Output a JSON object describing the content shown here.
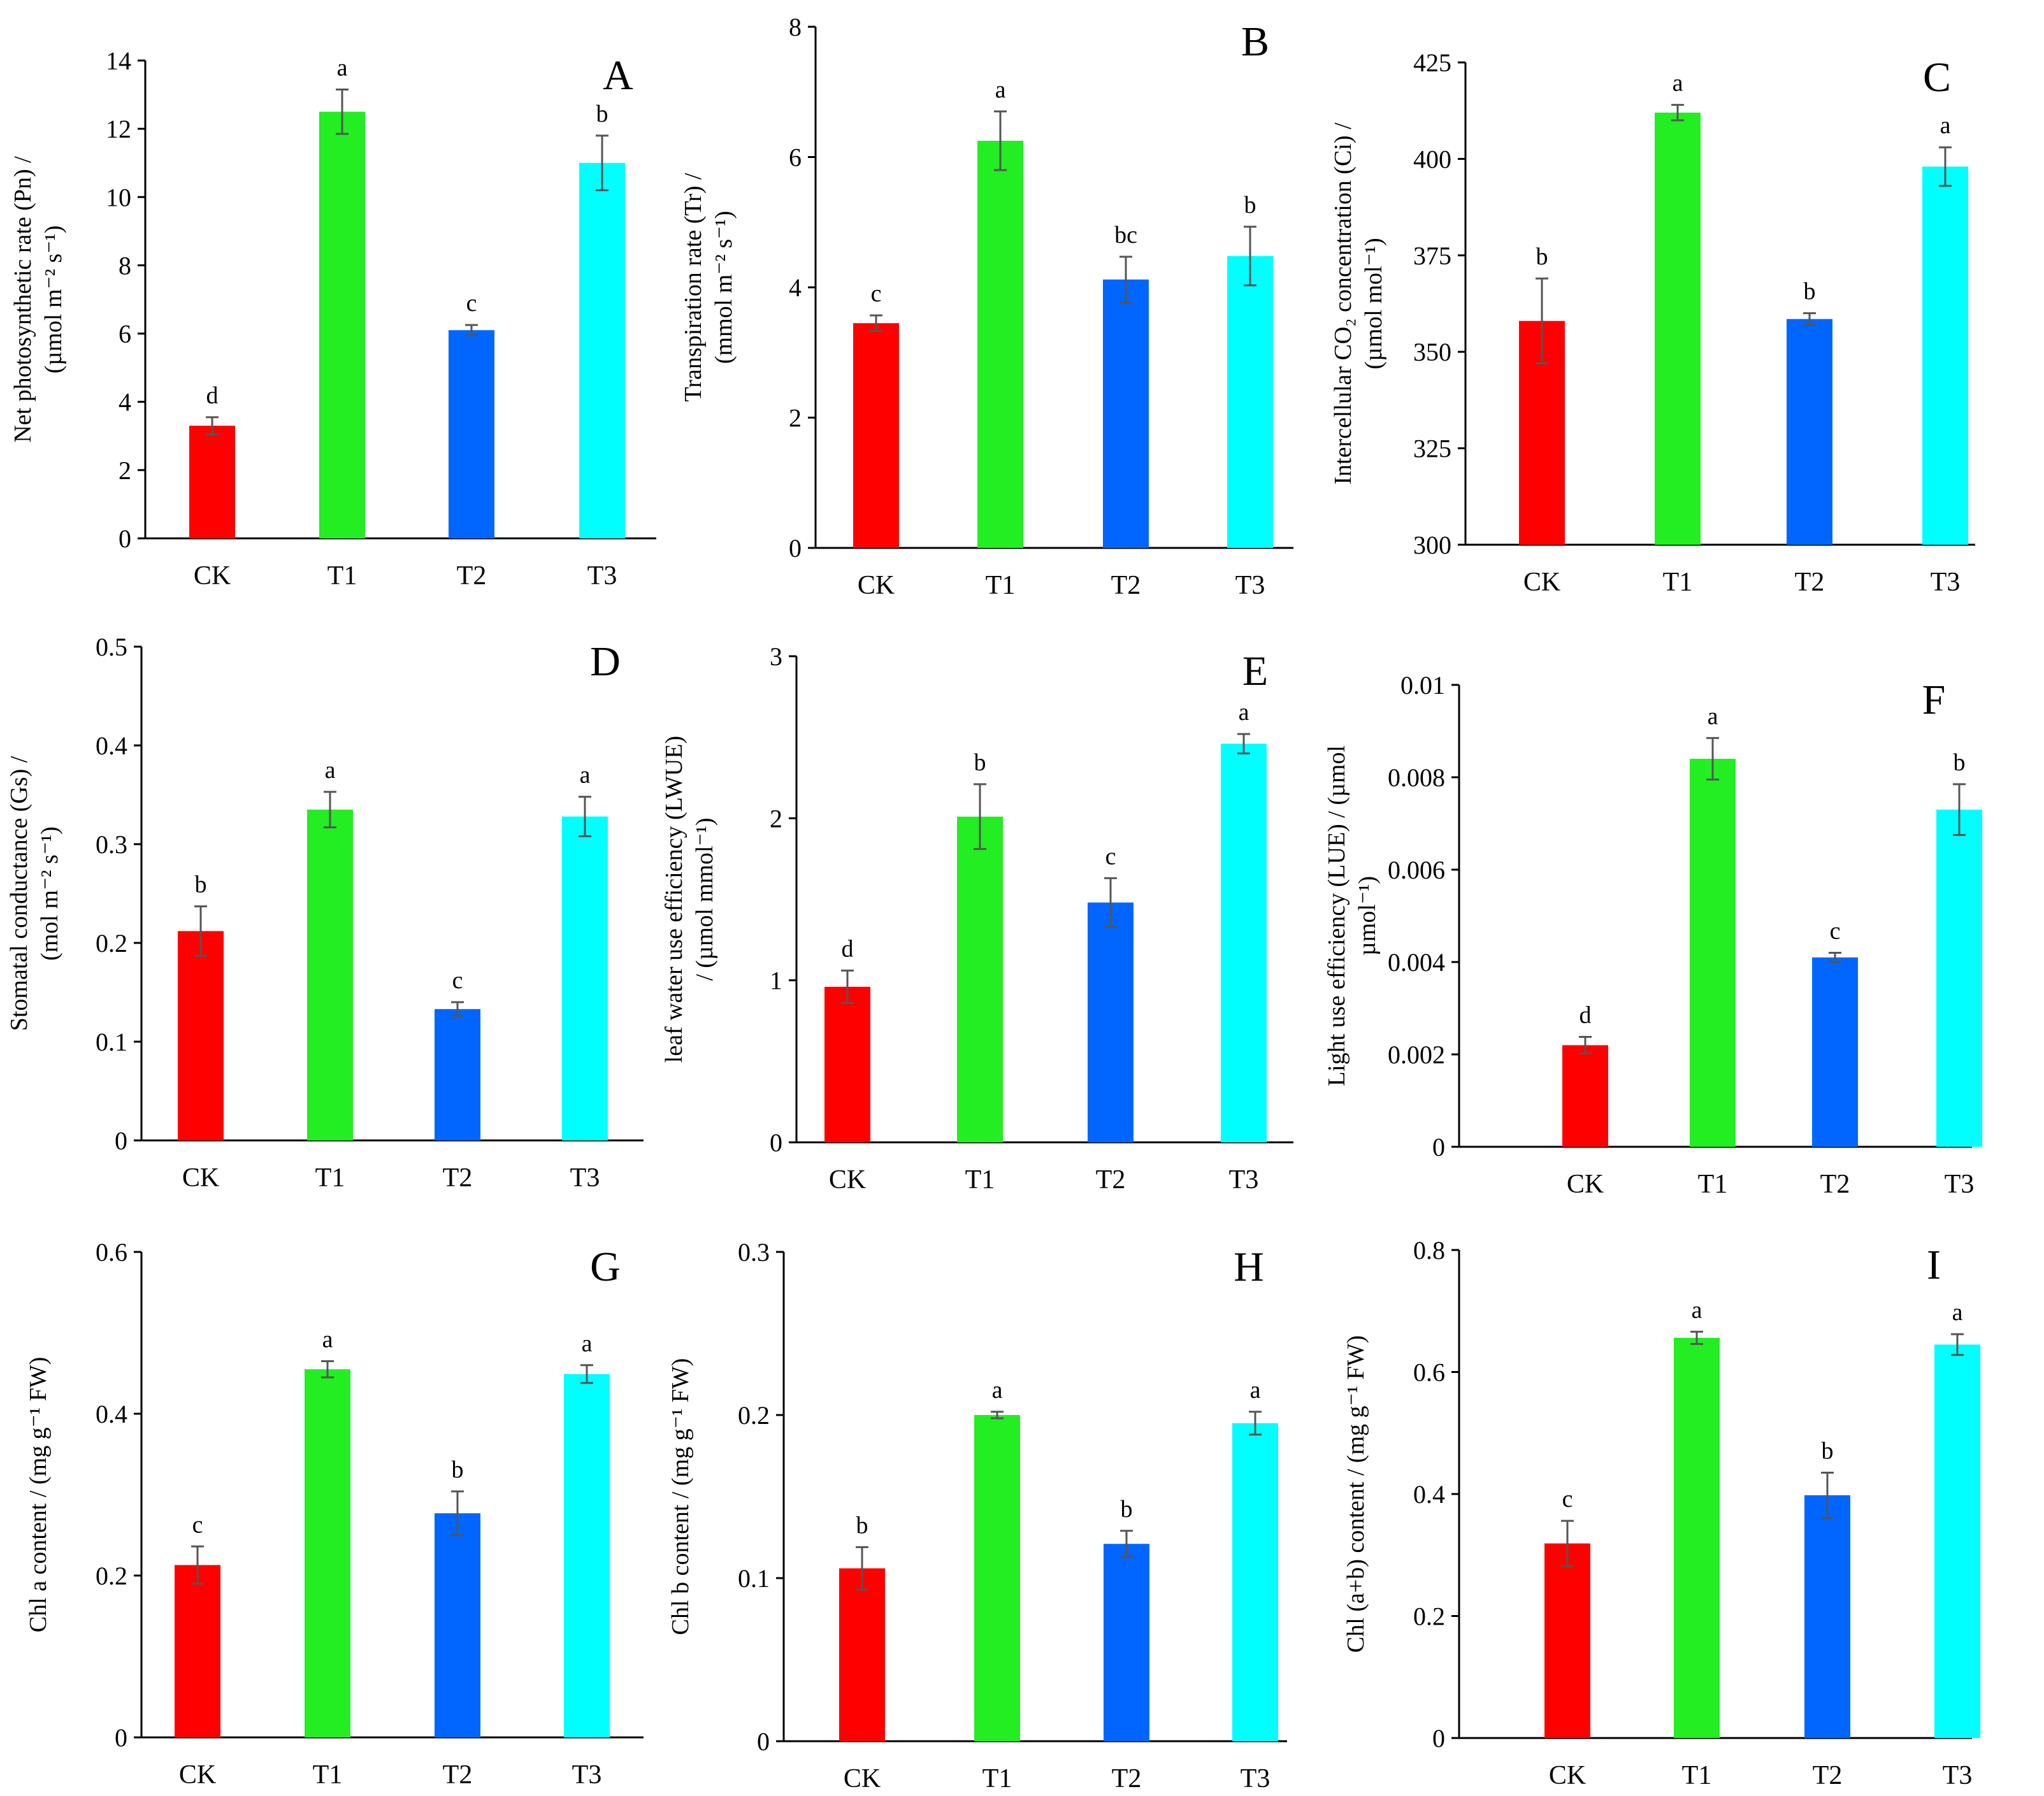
{
  "figure": {
    "categories": [
      "CK",
      "T1",
      "T2",
      "T3"
    ],
    "colors": {
      "CK": "#ff0000",
      "T1": "#22ee22",
      "T2": "#0066ff",
      "T3": "#00ffff"
    },
    "bar_color_list": [
      "#ff0000",
      "#22ee22",
      "#0066ff",
      "#00ffff"
    ]
  },
  "chart_data": [
    {
      "id": "A",
      "type": "bar",
      "panel_label": "A",
      "ylabel_lines": [
        "Net photosynthetic rate (Pn) /",
        "(µmol m⁻² s⁻¹)"
      ],
      "ylim": [
        0,
        14
      ],
      "yticks": [
        0,
        2,
        4,
        6,
        8,
        10,
        12,
        14
      ],
      "ytick_labels": [
        "0",
        "2",
        "4",
        "6",
        "8",
        "10",
        "12",
        "14"
      ],
      "categories": [
        "CK",
        "T1",
        "T2",
        "T3"
      ],
      "values": [
        3.3,
        12.5,
        6.1,
        11.0
      ],
      "errors": [
        0.25,
        0.65,
        0.15,
        0.8
      ],
      "letters": [
        "d",
        "a",
        "c",
        "b"
      ]
    },
    {
      "id": "B",
      "type": "bar",
      "panel_label": "B",
      "ylabel_lines": [
        "Transpiration rate (Tr) /",
        "(mmol m⁻² s⁻¹)"
      ],
      "ylim": [
        0,
        8
      ],
      "yticks": [
        0,
        2,
        4,
        6,
        8
      ],
      "ytick_labels": [
        "0",
        "2",
        "4",
        "6",
        "8"
      ],
      "categories": [
        "CK",
        "T1",
        "T2",
        "T3"
      ],
      "values": [
        3.45,
        6.25,
        4.12,
        4.48
      ],
      "errors": [
        0.12,
        0.45,
        0.35,
        0.45
      ],
      "letters": [
        "c",
        "a",
        "bc",
        "b"
      ]
    },
    {
      "id": "C",
      "type": "bar",
      "panel_label": "C",
      "ylabel_lines": [
        "Intercellular CO₂ concentration (Ci) /",
        "(µmol mol⁻¹)"
      ],
      "ylim": [
        300,
        425
      ],
      "yticks": [
        300,
        325,
        350,
        375,
        400,
        425
      ],
      "ytick_labels": [
        "300",
        "325",
        "350",
        "375",
        "400",
        "425"
      ],
      "categories": [
        "CK",
        "T1",
        "T2",
        "T3"
      ],
      "values": [
        358,
        412,
        358.5,
        398
      ],
      "errors": [
        11,
        2,
        1.5,
        5
      ],
      "letters": [
        "b",
        "a",
        "b",
        "a"
      ]
    },
    {
      "id": "D",
      "type": "bar",
      "panel_label": "D",
      "ylabel_lines": [
        "Stomatal conductance (Gs) /",
        "(mol m⁻² s⁻¹)"
      ],
      "ylim": [
        0,
        0.5
      ],
      "yticks": [
        0,
        0.1,
        0.2,
        0.3,
        0.4,
        0.5
      ],
      "ytick_labels": [
        "0",
        "0.1",
        "0.2",
        "0.3",
        "0.4",
        "0.5"
      ],
      "categories": [
        "CK",
        "T1",
        "T2",
        "T3"
      ],
      "values": [
        0.212,
        0.335,
        0.133,
        0.328
      ],
      "errors": [
        0.025,
        0.018,
        0.007,
        0.02
      ],
      "letters": [
        "b",
        "a",
        "c",
        "a"
      ]
    },
    {
      "id": "E",
      "type": "bar",
      "panel_label": "E",
      "ylabel_lines": [
        "leaf water use efficiency (LWUE)",
        "/ (µmol mmol⁻¹)"
      ],
      "ylim": [
        0,
        3
      ],
      "yticks": [
        0,
        1,
        2,
        3
      ],
      "ytick_labels": [
        "0",
        "1",
        "2",
        "3"
      ],
      "categories": [
        "CK",
        "T1",
        "T2",
        "T3"
      ],
      "values": [
        0.96,
        2.01,
        1.48,
        2.46
      ],
      "errors": [
        0.1,
        0.2,
        0.15,
        0.06
      ],
      "letters": [
        "d",
        "b",
        "c",
        "a"
      ]
    },
    {
      "id": "F",
      "type": "bar",
      "panel_label": "F",
      "ylabel_lines": [
        "Light use efficiency (LUE) / (µmol",
        "µmol⁻¹)"
      ],
      "ylim": [
        0,
        0.01
      ],
      "yticks": [
        0,
        0.002,
        0.004,
        0.006,
        0.008,
        0.01
      ],
      "ytick_labels": [
        "0",
        "0.002",
        "0.004",
        "0.006",
        "0.008",
        "0.01"
      ],
      "categories": [
        "CK",
        "T1",
        "T2",
        "T3"
      ],
      "values": [
        0.0022,
        0.0084,
        0.0041,
        0.0073
      ],
      "errors": [
        0.00018,
        0.00045,
        0.0001,
        0.00055
      ],
      "letters": [
        "d",
        "a",
        "c",
        "b"
      ]
    },
    {
      "id": "G",
      "type": "bar",
      "panel_label": "G",
      "ylabel_lines": [
        "Chl a content / (mg g⁻¹ FW)"
      ],
      "ylim": [
        0,
        0.6
      ],
      "yticks": [
        0,
        0.2,
        0.4,
        0.6
      ],
      "ytick_labels": [
        "0",
        "0.2",
        "0.4",
        "0.6"
      ],
      "categories": [
        "CK",
        "T1",
        "T2",
        "T3"
      ],
      "values": [
        0.213,
        0.455,
        0.277,
        0.449
      ],
      "errors": [
        0.023,
        0.01,
        0.027,
        0.011
      ],
      "letters": [
        "c",
        "a",
        "b",
        "a"
      ]
    },
    {
      "id": "H",
      "type": "bar",
      "panel_label": "H",
      "ylabel_lines": [
        "Chl b content / (mg g⁻¹ FW)"
      ],
      "ylim": [
        0,
        0.3
      ],
      "yticks": [
        0,
        0.1,
        0.2,
        0.3
      ],
      "ytick_labels": [
        "0",
        "0.1",
        "0.2",
        "0.3"
      ],
      "categories": [
        "CK",
        "T1",
        "T2",
        "T3"
      ],
      "values": [
        0.106,
        0.2,
        0.121,
        0.195
      ],
      "errors": [
        0.013,
        0.002,
        0.008,
        0.007
      ],
      "letters": [
        "b",
        "a",
        "b",
        "a"
      ]
    },
    {
      "id": "I",
      "type": "bar",
      "panel_label": "I",
      "ylabel_lines": [
        "Chl (a+b) content / (mg g⁻¹ FW)"
      ],
      "ylim": [
        0,
        0.8
      ],
      "yticks": [
        0,
        0.2,
        0.4,
        0.6,
        0.8
      ],
      "ytick_labels": [
        "0",
        "0.2",
        "0.4",
        "0.6",
        "0.8"
      ],
      "categories": [
        "CK",
        "T1",
        "T2",
        "T3"
      ],
      "values": [
        0.319,
        0.656,
        0.398,
        0.645
      ],
      "errors": [
        0.037,
        0.01,
        0.037,
        0.017
      ],
      "letters": [
        "c",
        "a",
        "b",
        "a"
      ]
    }
  ]
}
